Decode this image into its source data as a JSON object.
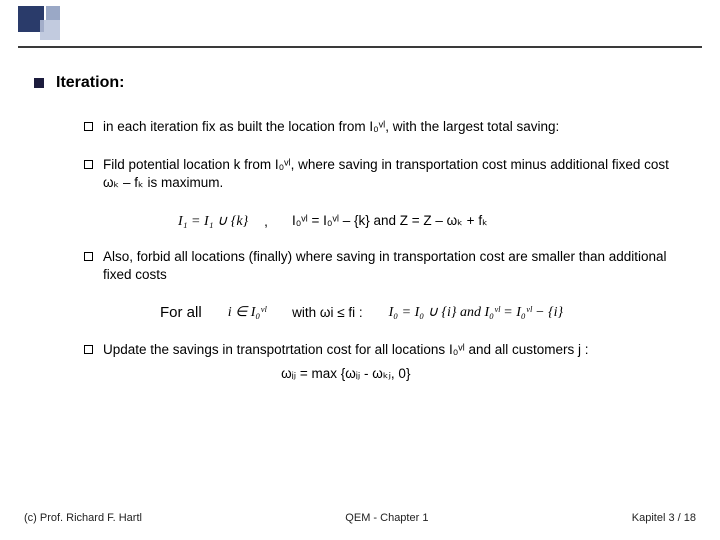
{
  "decor": {
    "square_a_color": "#2a3b6a",
    "square_b_color": "#b7c2d9",
    "square_c_color": "#9aa8c6",
    "rule_color": "#3a3a3a"
  },
  "heading": "Iteration:",
  "bullets": {
    "b1": "in each iteration fix as built the location from I₀ᵛˡ, with the largest total saving:",
    "b2": "Fild potential location k from I₀ᵛˡ, where saving in transportation cost minus additional fixed cost ωₖ – fₖ  is maximum.",
    "b3": "Also, forbid all locations (finally) where saving in transportation cost are smaller than additional fixed costs",
    "b4": "Update the savings in transpotrtation cost for all locations I₀ᵛˡ and all customers j :"
  },
  "formula1_left": "I₁ = I₁ ∪ {k}",
  "formula1_sep": ",",
  "formula1_right": "I₀ᵛˡ = I₀ᵛˡ – {k} and Z = Z – ωₖ + fₖ",
  "forall_label": "For all",
  "forall_set": "i ∈ I₀ᵛˡ",
  "forall_cond": "with ωi ≤ fi  :",
  "forall_rhs": "I₀ = I₀ ∪ {i} and I₀ᵛˡ = I₀ᵛˡ − {i}",
  "omega_update": "ωᵢⱼ = max {ωᵢⱼ - ωₖⱼ, 0}",
  "footer": {
    "left": "(c) Prof. Richard F. Hartl",
    "center": "QEM -  Chapter 1",
    "right": "Kapitel 3 / 18"
  }
}
